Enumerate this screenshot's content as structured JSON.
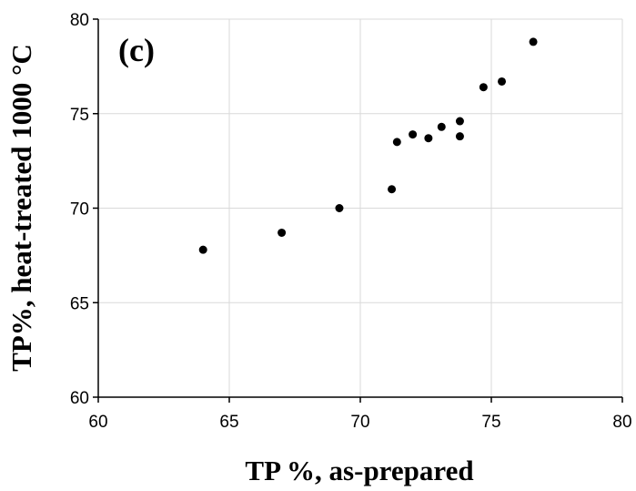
{
  "chart_data": {
    "type": "scatter",
    "panel_label": "(c)",
    "xlabel": "TP %, as-prepared",
    "ylabel": "TP%,  heat-treated 1000 °C",
    "xlim": [
      60,
      80
    ],
    "ylim": [
      60,
      80
    ],
    "x_ticks": [
      60,
      65,
      70,
      75,
      80
    ],
    "y_ticks": [
      60,
      65,
      70,
      75,
      80
    ],
    "grid": true,
    "marker_color": "#000000",
    "grid_color": "#d9d9d9",
    "points": [
      {
        "x": 64.0,
        "y": 67.8
      },
      {
        "x": 67.0,
        "y": 68.7
      },
      {
        "x": 69.2,
        "y": 70.0
      },
      {
        "x": 71.2,
        "y": 71.0
      },
      {
        "x": 71.4,
        "y": 73.5
      },
      {
        "x": 72.0,
        "y": 73.9
      },
      {
        "x": 72.6,
        "y": 73.7
      },
      {
        "x": 73.1,
        "y": 74.3
      },
      {
        "x": 73.8,
        "y": 74.6
      },
      {
        "x": 73.8,
        "y": 73.8
      },
      {
        "x": 74.7,
        "y": 76.4
      },
      {
        "x": 75.4,
        "y": 76.7
      },
      {
        "x": 76.6,
        "y": 78.8
      }
    ]
  }
}
